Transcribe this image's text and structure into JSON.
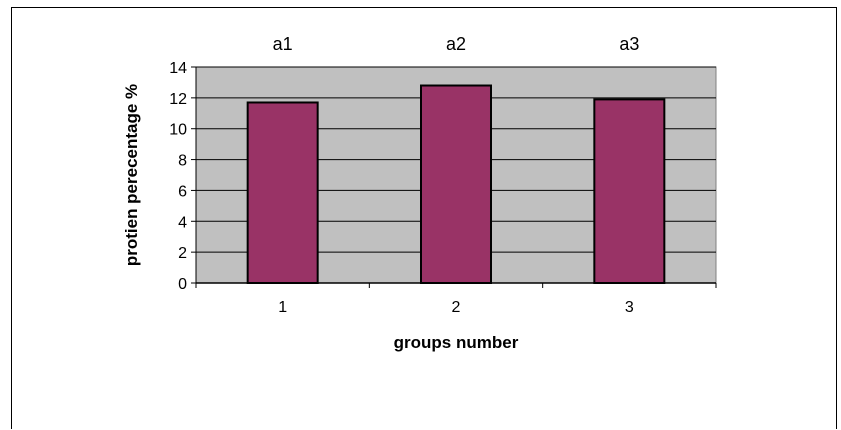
{
  "chart_data": {
    "type": "bar",
    "categories": [
      "1",
      "2",
      "3"
    ],
    "values": [
      11.7,
      12.8,
      11.9
    ],
    "bar_labels": [
      "a1",
      "a2",
      "a3"
    ],
    "xlabel": "groups number",
    "ylabel": "protien perecentage %",
    "ylim": [
      0,
      14
    ],
    "yticks": [
      0,
      2,
      4,
      6,
      8,
      10,
      12,
      14
    ],
    "grid": true,
    "legend": "none",
    "colors": {
      "bar_fill": "#993366",
      "bar_stroke": "#000000",
      "plot_background": "#c0c0c0",
      "gridline": "#000000"
    }
  }
}
